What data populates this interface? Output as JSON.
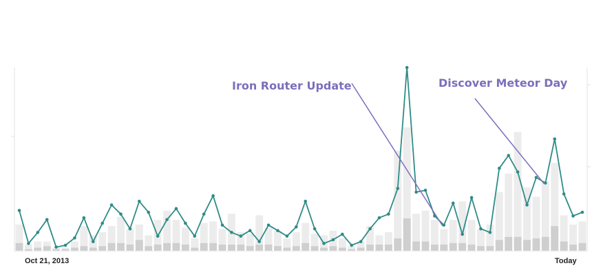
{
  "chart_data": {
    "type": "bar+line",
    "title": "",
    "xlabel": "",
    "ylabel": "",
    "x_labels": {
      "start": "Oct 21, 2013",
      "end": "Today"
    },
    "annotations": [
      {
        "label": "Iron Router Update",
        "target_index": 46
      },
      {
        "label": "Discover Meteor Day",
        "target_index": 57
      }
    ],
    "colors": {
      "line": "#2e8b87",
      "bar_light": "#ececec",
      "bar_dark": "#cfcfcf",
      "annotation": "#7b6fbb",
      "axis": "#dddddd"
    },
    "left_ylim": [
      0,
      100
    ],
    "right_ylim": [
      0,
      100
    ],
    "grid": false,
    "series": [
      {
        "name": "",
        "kind": "line",
        "values": [
          22,
          4,
          10,
          17,
          2,
          3,
          7,
          18,
          5,
          15,
          25,
          20,
          12,
          27,
          21,
          8,
          17,
          23,
          15,
          8,
          20,
          30,
          14,
          10,
          8,
          11,
          5,
          14,
          11,
          8,
          13,
          27,
          12,
          4,
          6,
          9,
          3,
          5,
          12,
          18,
          20,
          34,
          100,
          32,
          33,
          19,
          14,
          26,
          9,
          29,
          12,
          10,
          45,
          52,
          43,
          25,
          40,
          37,
          61,
          31,
          19,
          21
        ]
      },
      {
        "name": "",
        "kind": "bar",
        "values": [
          17,
          4,
          6,
          6,
          2,
          2,
          6,
          16,
          10,
          12,
          16,
          22,
          14,
          17,
          10,
          20,
          26,
          20,
          15,
          8,
          18,
          19,
          14,
          24,
          12,
          11,
          23,
          15,
          13,
          8,
          12,
          18,
          11,
          10,
          13,
          8,
          3,
          6,
          16,
          10,
          12,
          65,
          80,
          24,
          26,
          20,
          14,
          20,
          32,
          20,
          14,
          17,
          38,
          50,
          77,
          41,
          35,
          45,
          57,
          23,
          17,
          19
        ]
      },
      {
        "name": "",
        "kind": "bar",
        "values": [
          5,
          1,
          2,
          3,
          1,
          1,
          2,
          3,
          2,
          3,
          5,
          5,
          4,
          7,
          3,
          4,
          5,
          5,
          4,
          2,
          5,
          5,
          4,
          4,
          4,
          3,
          4,
          4,
          3,
          2,
          3,
          5,
          3,
          2,
          3,
          2,
          1,
          2,
          4,
          4,
          4,
          8,
          21,
          6,
          6,
          4,
          4,
          5,
          5,
          4,
          3,
          3,
          7,
          9,
          9,
          7,
          8,
          9,
          16,
          6,
          4,
          5
        ]
      }
    ]
  }
}
